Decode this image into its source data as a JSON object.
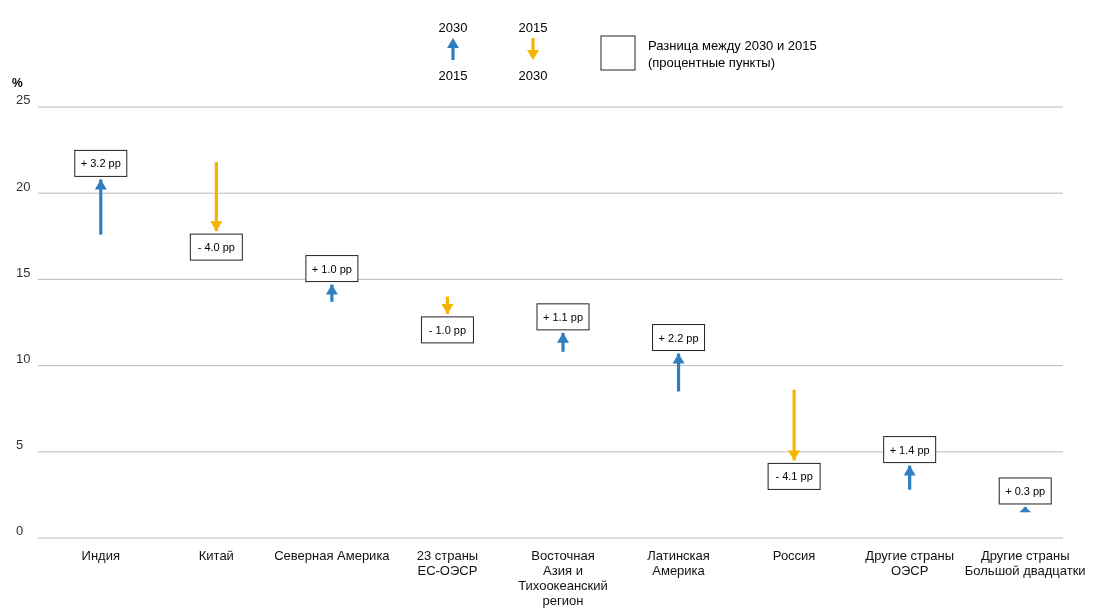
{
  "chart_data": {
    "type": "bar",
    "ylabel": "%",
    "categories": [
      "Индия",
      "Китай",
      "Северная Америка",
      "23 страны\nЕС-ОЭСР",
      "Восточная\nАзия и\nТихоокеанский\nрегион",
      "Латинская\nАмерика",
      "Россия",
      "Другие страны\nОЭСР",
      "Другие страны\nБольшой двадцатки"
    ],
    "base": [
      17.6,
      21.8,
      13.7,
      14.0,
      10.8,
      8.5,
      8.6,
      2.8,
      1.5
    ],
    "values": [
      3.2,
      -4.0,
      1.0,
      -1.0,
      1.1,
      2.2,
      -4.1,
      1.4,
      0.3
    ],
    "colors": [
      "#2e7fc1",
      "#f5b400",
      "#2e7fc1",
      "#f5b400",
      "#2e7fc1",
      "#2e7fc1",
      "#f5b400",
      "#2e7fc1",
      "#2e7fc1"
    ],
    "value_labels": [
      "+ 3.2 pp",
      "- 4.0 pp",
      "+ 1.0 pp",
      "- 1.0 pp",
      "+ 1.1 pp",
      "+ 2.2 pp",
      "- 4.1 pp",
      "+ 1.4 pp",
      "+ 0.3 pp"
    ],
    "ylim": [
      0,
      25
    ],
    "yticks": [
      0,
      5,
      10,
      15,
      20,
      25
    ],
    "grid": "y",
    "annotations": [
      "2030",
      "2015",
      "2015",
      "2030",
      "Разница между 2030 и 2015\n(процентные пункты)"
    ]
  }
}
